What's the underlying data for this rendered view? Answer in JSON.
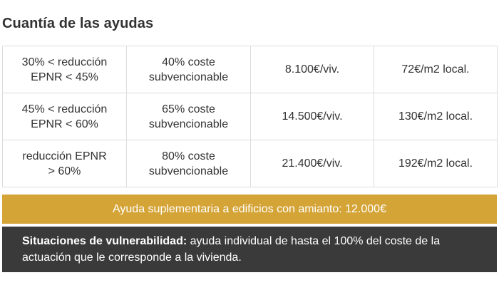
{
  "title": "Cuantía de las ayudas",
  "rows": [
    {
      "reduction_line1": "30% < reducción",
      "reduction_line2": "EPNR < 45%",
      "cost_line1": "40% coste",
      "cost_line2": "subvencionable",
      "per_dwelling": "8.100€/viv.",
      "per_m2": "72€/m2 local."
    },
    {
      "reduction_line1": "45% < reducción",
      "reduction_line2": "EPNR < 60%",
      "cost_line1": "65% coste",
      "cost_line2": "subvencionable",
      "per_dwelling": "14.500€/viv.",
      "per_m2": "130€/m2 local."
    },
    {
      "reduction_line1": "reducción EPNR",
      "reduction_line2": "> 60%",
      "cost_line1": "80% coste",
      "cost_line2": "subvencionable",
      "per_dwelling": "21.400€/viv.",
      "per_m2": "192€/m2 local."
    }
  ],
  "amianto_text": "Ayuda suplementaria a edificios con amianto: 12.000€",
  "vulnerability": {
    "label": "Situaciones de vulnerabilidad:",
    "text": " ayuda individual de hasta el 100% del coste de la actuación que le corresponde a la vivienda."
  },
  "colors": {
    "amianto_band": "#d4a437",
    "vulnerability_band": "#3a3a3a",
    "border": "#dcdcdc"
  }
}
